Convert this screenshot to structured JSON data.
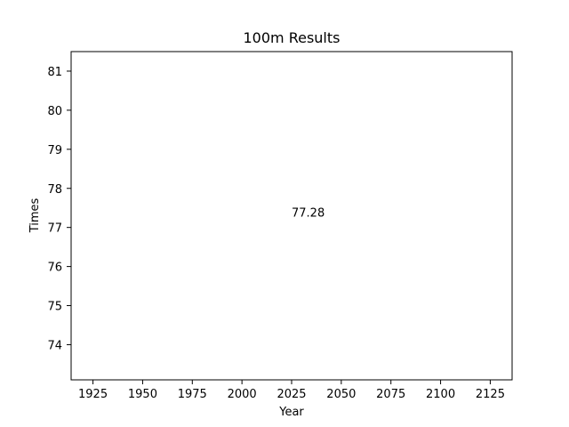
{
  "chart_data": {
    "type": "scatter",
    "title": "100m Results",
    "xlabel": "Year",
    "ylabel": "Times",
    "xlim": [
      1914,
      2136
    ],
    "ylim": [
      73.1,
      81.5
    ],
    "xticks": [
      1925,
      1950,
      1975,
      2000,
      2025,
      2050,
      2075,
      2100,
      2125
    ],
    "yticks": [
      74,
      75,
      76,
      77,
      78,
      79,
      80,
      81
    ],
    "grid": false,
    "series": [
      {
        "x": [],
        "y": []
      }
    ],
    "annotations": [
      {
        "text": "77.28",
        "x": 2025,
        "y": 77.28
      }
    ]
  }
}
